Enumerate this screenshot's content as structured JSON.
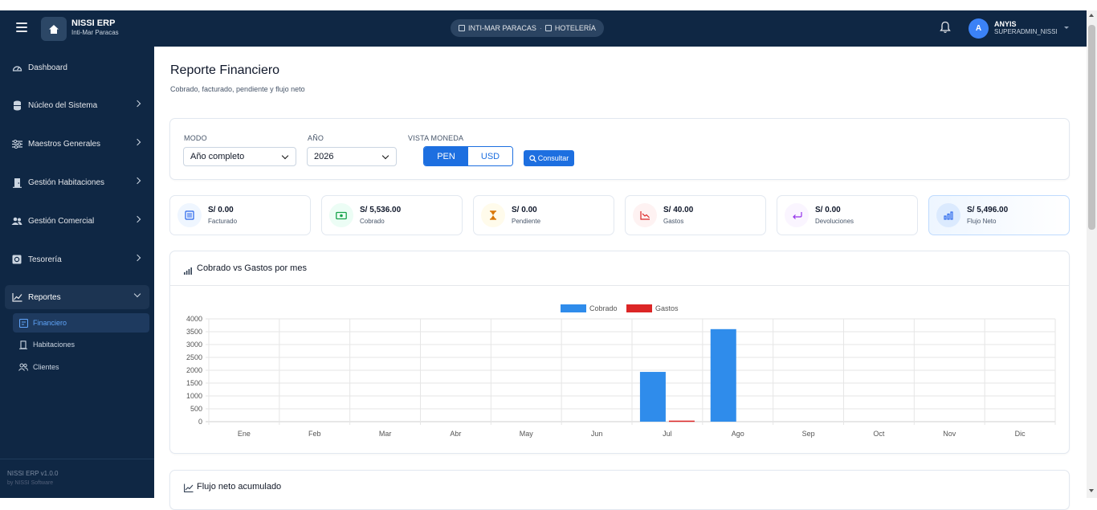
{
  "app": {
    "title": "NISSI ERP",
    "subtitle": "Inti-Mar Paracas"
  },
  "context": {
    "property": "INTI-MAR PARACAS",
    "separator": "·",
    "module": "HOTELERÍA"
  },
  "user": {
    "initial": "A",
    "name": "ANYIS",
    "role": "SUPERADMIN_NISSI"
  },
  "sidebar": {
    "items": [
      {
        "label": "Dashboard",
        "icon": "gauge-icon"
      },
      {
        "label": "Núcleo del Sistema",
        "icon": "database-icon"
      },
      {
        "label": "Maestros Generales",
        "icon": "sliders-icon"
      },
      {
        "label": "Gestión Habitaciones",
        "icon": "door-icon"
      },
      {
        "label": "Gestión Comercial",
        "icon": "users-icon"
      },
      {
        "label": "Tesorería",
        "icon": "safe-icon"
      },
      {
        "label": "Reportes",
        "icon": "line-chart-icon"
      }
    ],
    "subitems": [
      {
        "label": "Financiero",
        "icon": "report-icon"
      },
      {
        "label": "Habitaciones",
        "icon": "door-icon"
      },
      {
        "label": "Clientes",
        "icon": "users-icon"
      }
    ],
    "footer": {
      "version": "NISSI ERP v1.0.0",
      "by": "by NISSI Software"
    }
  },
  "page": {
    "title": "Reporte Financiero",
    "subtitle": "Cobrado, facturado, pendiente y flujo neto"
  },
  "filters": {
    "mode_label": "MODO",
    "mode_value": "Año completo",
    "year_label": "AÑO",
    "year_value": "2026",
    "currency_label": "VISTA MONEDA",
    "currency_options": [
      "PEN",
      "USD"
    ],
    "currency_selected": "PEN",
    "submit_label": "Consultar"
  },
  "kpis": [
    {
      "value": "S/ 0.00",
      "label": "Facturado",
      "icon": "invoice-icon",
      "color": "#2563eb",
      "bg": "#eff6ff"
    },
    {
      "value": "S/ 5,536.00",
      "label": "Cobrado",
      "icon": "cash-icon",
      "color": "#16a34a",
      "bg": "#ecfdf5"
    },
    {
      "value": "S/ 0.00",
      "label": "Pendiente",
      "icon": "hourglass-icon",
      "color": "#d97706",
      "bg": "#fffbeb"
    },
    {
      "value": "S/ 40.00",
      "label": "Gastos",
      "icon": "trend-down-icon",
      "color": "#dc2626",
      "bg": "#fef2f2"
    },
    {
      "value": "S/ 0.00",
      "label": "Devoluciones",
      "icon": "return-icon",
      "color": "#9333ea",
      "bg": "#faf5ff"
    },
    {
      "value": "S/ 5,496.00",
      "label": "Flujo Neto",
      "icon": "bar-chart-icon",
      "color": "#2563eb",
      "bg": "#dbeafe"
    }
  ],
  "chart_section": {
    "title": "Cobrado vs Gastos por mes"
  },
  "chart_data": {
    "type": "bar",
    "title": "",
    "categories": [
      "Ene",
      "Feb",
      "Mar",
      "Abr",
      "May",
      "Jun",
      "Jul",
      "Ago",
      "Sep",
      "Oct",
      "Nov",
      "Dic"
    ],
    "series": [
      {
        "name": "Cobrado",
        "color": "#2f8ceb",
        "values": [
          0,
          0,
          0,
          0,
          0,
          0,
          1936,
          3600,
          0,
          0,
          0,
          0
        ]
      },
      {
        "name": "Gastos",
        "color": "#dc2626",
        "values": [
          0,
          0,
          0,
          0,
          0,
          0,
          40,
          0,
          0,
          0,
          0,
          0
        ]
      }
    ],
    "yticks": [
      "0",
      "500",
      "1000",
      "1500",
      "2000",
      "2500",
      "3000",
      "3500",
      "4000"
    ],
    "ylim": [
      0,
      4000
    ],
    "grid": true,
    "legend": "top-center"
  },
  "next_section": {
    "title": "Flujo neto acumulado"
  }
}
